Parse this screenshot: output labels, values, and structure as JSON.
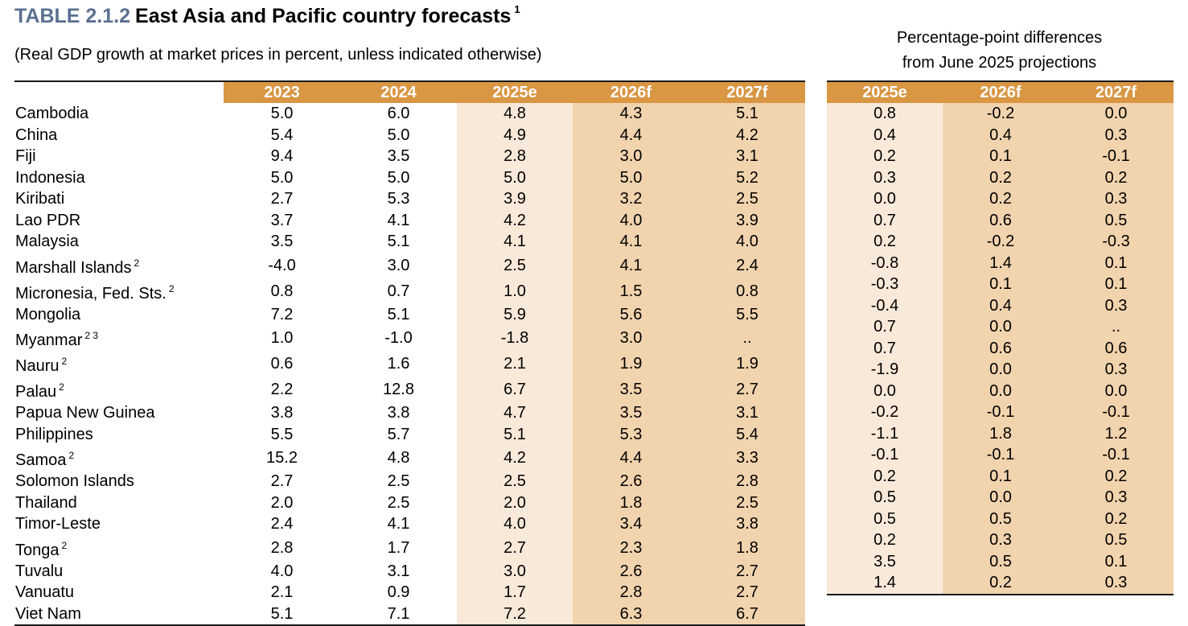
{
  "header": {
    "table_number": "TABLE 2.1.2",
    "title": "East Asia and Pacific country forecasts",
    "title_note": "1",
    "subtitle": "(Real GDP growth at market prices in percent, unless indicated otherwise)",
    "diff_heading_line1": "Percentage-point differences",
    "diff_heading_line2": "from June 2025 projections"
  },
  "columns": [
    "2023",
    "2024",
    "2025e",
    "2026f",
    "2027f"
  ],
  "diff_columns": [
    "2025e",
    "2026f",
    "2027f"
  ],
  "colors": {
    "header_fill": "#d99643",
    "light_fill": "#f9e9d9",
    "dark_fill": "#f1d3ad",
    "title_blue": "#5a7091"
  },
  "rows": [
    {
      "country": "Cambodia",
      "note": "",
      "values": [
        "5.0",
        "6.0",
        "4.8",
        "4.3",
        "5.1"
      ],
      "diffs": [
        "0.8",
        "-0.2",
        "0.0"
      ]
    },
    {
      "country": "China",
      "note": "",
      "values": [
        "5.4",
        "5.0",
        "4.9",
        "4.4",
        "4.2"
      ],
      "diffs": [
        "0.4",
        "0.4",
        "0.3"
      ]
    },
    {
      "country": "Fiji",
      "note": "",
      "values": [
        "9.4",
        "3.5",
        "2.8",
        "3.0",
        "3.1"
      ],
      "diffs": [
        "0.2",
        "0.1",
        "-0.1"
      ]
    },
    {
      "country": "Indonesia",
      "note": "",
      "values": [
        "5.0",
        "5.0",
        "5.0",
        "5.0",
        "5.2"
      ],
      "diffs": [
        "0.3",
        "0.2",
        "0.2"
      ]
    },
    {
      "country": "Kiribati",
      "note": "",
      "values": [
        "2.7",
        "5.3",
        "3.9",
        "3.2",
        "2.5"
      ],
      "diffs": [
        "0.0",
        "0.2",
        "0.3"
      ]
    },
    {
      "country": "Lao PDR",
      "note": "",
      "values": [
        "3.7",
        "4.1",
        "4.2",
        "4.0",
        "3.9"
      ],
      "diffs": [
        "0.7",
        "0.6",
        "0.5"
      ]
    },
    {
      "country": "Malaysia",
      "note": "",
      "values": [
        "3.5",
        "5.1",
        "4.1",
        "4.1",
        "4.0"
      ],
      "diffs": [
        "0.2",
        "-0.2",
        "-0.3"
      ]
    },
    {
      "country": "Marshall Islands",
      "note": "2",
      "values": [
        "-4.0",
        "3.0",
        "2.5",
        "4.1",
        "2.4"
      ],
      "diffs": [
        "-0.8",
        "1.4",
        "0.1"
      ]
    },
    {
      "country": "Micronesia, Fed. Sts.",
      "note": "2",
      "values": [
        "0.8",
        "0.7",
        "1.0",
        "1.5",
        "0.8"
      ],
      "diffs": [
        "-0.3",
        "0.1",
        "0.1"
      ]
    },
    {
      "country": "Mongolia",
      "note": "",
      "values": [
        "7.2",
        "5.1",
        "5.9",
        "5.6",
        "5.5"
      ],
      "diffs": [
        "-0.4",
        "0.4",
        "0.3"
      ]
    },
    {
      "country": "Myanmar",
      "note": "2 3",
      "values": [
        "1.0",
        "-1.0",
        "-1.8",
        "3.0",
        ".."
      ],
      "diffs": [
        "0.7",
        "0.0",
        ".."
      ]
    },
    {
      "country": "Nauru",
      "note": "2",
      "values": [
        "0.6",
        "1.6",
        "2.1",
        "1.9",
        "1.9"
      ],
      "diffs": [
        "0.7",
        "0.6",
        "0.6"
      ]
    },
    {
      "country": "Palau",
      "note": "2",
      "values": [
        "2.2",
        "12.8",
        "6.7",
        "3.5",
        "2.7"
      ],
      "diffs": [
        "-1.9",
        "0.0",
        "0.3"
      ]
    },
    {
      "country": "Papua New Guinea",
      "note": "",
      "values": [
        "3.8",
        "3.8",
        "4.7",
        "3.5",
        "3.1"
      ],
      "diffs": [
        "0.0",
        "0.0",
        "0.0"
      ]
    },
    {
      "country": "Philippines",
      "note": "",
      "values": [
        "5.5",
        "5.7",
        "5.1",
        "5.3",
        "5.4"
      ],
      "diffs": [
        "-0.2",
        "-0.1",
        "-0.1"
      ]
    },
    {
      "country": "Samoa",
      "note": "2",
      "values": [
        "15.2",
        "4.8",
        "4.2",
        "4.4",
        "3.3"
      ],
      "diffs": [
        "-1.1",
        "1.8",
        "1.2"
      ]
    },
    {
      "country": "Solomon Islands",
      "note": "",
      "values": [
        "2.7",
        "2.5",
        "2.5",
        "2.6",
        "2.8"
      ],
      "diffs": [
        "-0.1",
        "-0.1",
        "-0.1"
      ]
    },
    {
      "country": "Thailand",
      "note": "",
      "values": [
        "2.0",
        "2.5",
        "2.0",
        "1.8",
        "2.5"
      ],
      "diffs": [
        "0.2",
        "0.1",
        "0.2"
      ]
    },
    {
      "country": "Timor-Leste",
      "note": "",
      "values": [
        "2.4",
        "4.1",
        "4.0",
        "3.4",
        "3.8"
      ],
      "diffs": [
        "0.5",
        "0.0",
        "0.3"
      ]
    },
    {
      "country": "Tonga",
      "note": "2",
      "values": [
        "2.8",
        "1.7",
        "2.7",
        "2.3",
        "1.8"
      ],
      "diffs": [
        "0.5",
        "0.5",
        "0.2"
      ]
    },
    {
      "country": "Tuvalu",
      "note": "",
      "values": [
        "4.0",
        "3.1",
        "3.0",
        "2.6",
        "2.7"
      ],
      "diffs": [
        "0.2",
        "0.3",
        "0.5"
      ]
    },
    {
      "country": "Vanuatu",
      "note": "",
      "values": [
        "2.1",
        "0.9",
        "1.7",
        "2.8",
        "2.7"
      ],
      "diffs": [
        "3.5",
        "0.5",
        "0.1"
      ]
    },
    {
      "country": "Viet Nam",
      "note": "",
      "values": [
        "5.1",
        "7.1",
        "7.2",
        "6.3",
        "6.7"
      ],
      "diffs": [
        "1.4",
        "0.2",
        "0.3"
      ]
    }
  ]
}
